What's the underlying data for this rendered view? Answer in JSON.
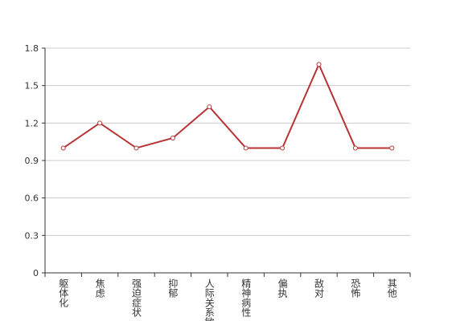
{
  "chart_data": {
    "type": "line",
    "categories": [
      "躯体化",
      "焦虑",
      "强迫症状",
      "抑郁",
      "人际关系敏感",
      "精神病性",
      "偏执",
      "敌对",
      "恐怖",
      "其他"
    ],
    "series": [
      {
        "color": "#b83434",
        "values": [
          1.0,
          1.2,
          1.0,
          1.08,
          1.33,
          1.0,
          1.0,
          1.67,
          1.0,
          1.0
        ]
      }
    ],
    "ylim": [
      0,
      1.8
    ],
    "yticks": [
      0,
      0.3,
      0.6,
      0.9,
      1.2,
      1.5,
      1.8
    ],
    "grid": true
  }
}
